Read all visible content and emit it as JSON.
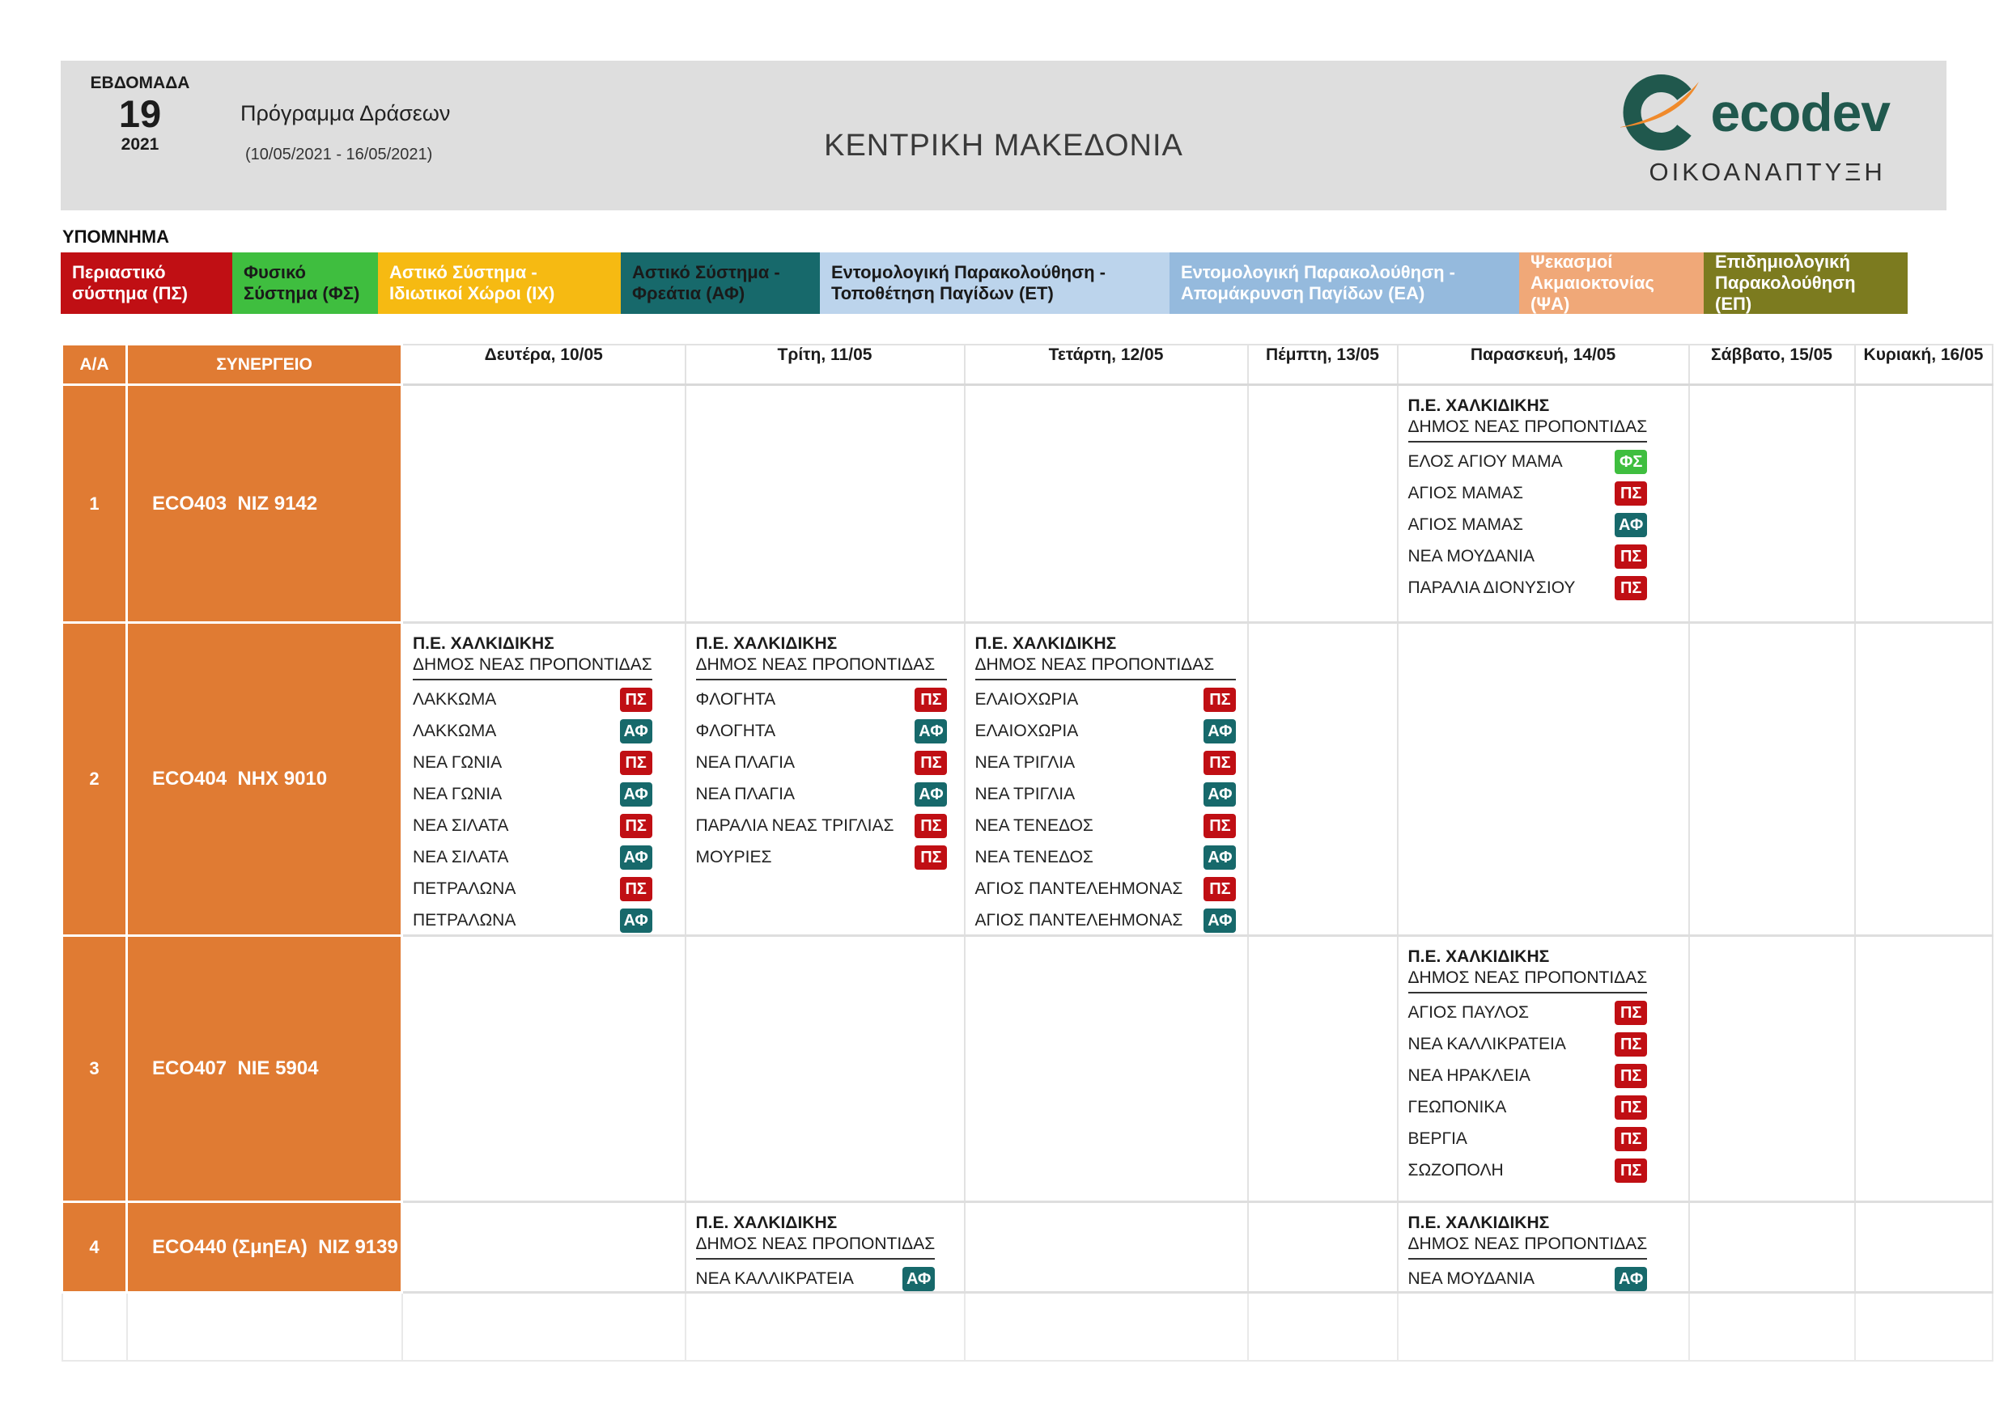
{
  "header": {
    "week_label": "ΕΒΔΟΜΑΔΑ",
    "week_number": "19",
    "year": "2021",
    "program_title": "Πρόγραμμα Δράσεων",
    "date_range": "(10/05/2021 - 16/05/2021)",
    "region_title": "ΚΕΝΤΡΙΚΗ ΜΑΚΕΔΟΝΙΑ",
    "logo_word": "ecodev",
    "logo_subtext": "ΟΙΚΟΑΝΑΠΤΥΞΗ",
    "logo_green": "#20584d",
    "logo_orange": "#f08a2b"
  },
  "legend": {
    "title": "ΥΠΟΜΝΗΜΑ",
    "items": [
      {
        "label": "Περιαστικό σύστημα (ΠΣ)",
        "code": "ΠΣ",
        "bg": "#c00f14",
        "fg": "#ffffff"
      },
      {
        "label": "Φυσικό Σύστημα (ΦΣ)",
        "code": "ΦΣ",
        "bg": "#3fbe3f",
        "fg": "#1a1a1a"
      },
      {
        "label": "Αστικό Σύστημα - Ιδιωτικοί Χώροι (ΙΧ)",
        "code": "ΙΧ",
        "bg": "#f6ba12",
        "fg": "#ffffff"
      },
      {
        "label": "Αστικό Σύστημα - Φρεάτια (ΑΦ)",
        "code": "ΑΦ",
        "bg": "#17696b",
        "fg": "#1a1a1a"
      },
      {
        "label": "Εντομολογική Παρακολούθηση - Τοποθέτηση Παγίδων (ΕΤ)",
        "code": "ΕΤ",
        "bg": "#bcd4ec",
        "fg": "#1a1a1a"
      },
      {
        "label": "Εντομολογική Παρακολούθηση - Απομάκρυνση Παγίδων (ΕΑ)",
        "code": "ΕΑ",
        "bg": "#95badd",
        "fg": "#ffffff"
      },
      {
        "label": "Ψεκασμοί Ακμαιοκτονίας (ΨΑ)",
        "code": "ΨΑ",
        "bg": "#f0a878",
        "fg": "#ffffff"
      },
      {
        "label": "Επιδημιολογική Παρακολούθηση (ΕΠ)",
        "code": "ΕΠ",
        "bg": "#7c7b1f",
        "fg": "#ffffff"
      }
    ]
  },
  "badge_colors": {
    "ΠΣ": "#c00f14",
    "ΦΣ": "#3fbe3f",
    "ΑΦ": "#17696b",
    "ΙΧ": "#f6ba12",
    "ΕΤ": "#bcd4ec",
    "ΕΑ": "#95badd",
    "ΨΑ": "#f0a878",
    "ΕΠ": "#7c7b1f"
  },
  "table": {
    "columns": [
      {
        "key": "aa",
        "label": "Α/Α"
      },
      {
        "key": "crew",
        "label": "ΣΥΝΕΡΓΕΙΟ"
      },
      {
        "key": "mon",
        "label": "Δευτέρα, 10/05"
      },
      {
        "key": "tue",
        "label": "Τρίτη, 11/05"
      },
      {
        "key": "wed",
        "label": "Τετάρτη, 12/05"
      },
      {
        "key": "thu",
        "label": "Πέμπτη, 13/05"
      },
      {
        "key": "fri",
        "label": "Παρασκευή, 14/05"
      },
      {
        "key": "sat",
        "label": "Σάββατο, 15/05"
      },
      {
        "key": "sun",
        "label": "Κυριακή, 16/05"
      }
    ],
    "rows": [
      {
        "aa": "1",
        "crew": "ECO403  ΝΙΖ 9142",
        "days": {
          "fri": {
            "area": "Π.Ε. ΧΑΛΚΙΔΙΚΗΣ",
            "municipality": "ΔΗΜΟΣ ΝΕΑΣ ΠΡΟΠΟΝΤΙΔΑΣ",
            "entries": [
              {
                "place": "ΕΛΟΣ ΑΓΙΟΥ ΜΑΜΑ",
                "code": "ΦΣ"
              },
              {
                "place": "ΑΓΙΟΣ ΜΑΜΑΣ",
                "code": "ΠΣ"
              },
              {
                "place": "ΑΓΙΟΣ ΜΑΜΑΣ",
                "code": "ΑΦ"
              },
              {
                "place": "ΝΕΑ ΜΟΥΔΑΝΙΑ",
                "code": "ΠΣ"
              },
              {
                "place": "ΠΑΡΑΛΙΑ ΔΙΟΝΥΣΙΟΥ",
                "code": "ΠΣ"
              }
            ]
          }
        }
      },
      {
        "aa": "2",
        "crew": "ECO404  ΝΗΧ 9010",
        "days": {
          "mon": {
            "area": "Π.Ε. ΧΑΛΚΙΔΙΚΗΣ",
            "municipality": "ΔΗΜΟΣ ΝΕΑΣ ΠΡΟΠΟΝΤΙΔΑΣ",
            "entries": [
              {
                "place": "ΛΑΚΚΩΜΑ",
                "code": "ΠΣ"
              },
              {
                "place": "ΛΑΚΚΩΜΑ",
                "code": "ΑΦ"
              },
              {
                "place": "ΝΕΑ ΓΩΝΙΑ",
                "code": "ΠΣ"
              },
              {
                "place": "ΝΕΑ ΓΩΝΙΑ",
                "code": "ΑΦ"
              },
              {
                "place": "ΝΕΑ ΣΙΛΑΤΑ",
                "code": "ΠΣ"
              },
              {
                "place": "ΝΕΑ ΣΙΛΑΤΑ",
                "code": "ΑΦ"
              },
              {
                "place": "ΠΕΤΡΑΛΩΝΑ",
                "code": "ΠΣ"
              },
              {
                "place": "ΠΕΤΡΑΛΩΝΑ",
                "code": "ΑΦ"
              }
            ]
          },
          "tue": {
            "area": "Π.Ε. ΧΑΛΚΙΔΙΚΗΣ",
            "municipality": "ΔΗΜΟΣ ΝΕΑΣ ΠΡΟΠΟΝΤΙΔΑΣ",
            "entries": [
              {
                "place": "ΦΛΟΓΗΤΑ",
                "code": "ΠΣ"
              },
              {
                "place": "ΦΛΟΓΗΤΑ",
                "code": "ΑΦ"
              },
              {
                "place": "ΝΕΑ ΠΛΑΓΙΑ",
                "code": "ΠΣ"
              },
              {
                "place": "ΝΕΑ ΠΛΑΓΙΑ",
                "code": "ΑΦ"
              },
              {
                "place": "ΠΑΡΑΛΙΑ ΝΕΑΣ ΤΡΙΓΛΙΑΣ",
                "code": "ΠΣ"
              },
              {
                "place": "ΜΟΥΡΙΕΣ",
                "code": "ΠΣ"
              }
            ]
          },
          "wed": {
            "area": "Π.Ε. ΧΑΛΚΙΔΙΚΗΣ",
            "municipality": "ΔΗΜΟΣ ΝΕΑΣ ΠΡΟΠΟΝΤΙΔΑΣ",
            "entries": [
              {
                "place": "ΕΛΑΙΟΧΩΡΙΑ",
                "code": "ΠΣ"
              },
              {
                "place": "ΕΛΑΙΟΧΩΡΙΑ",
                "code": "ΑΦ"
              },
              {
                "place": "ΝΕΑ ΤΡΙΓΛΙΑ",
                "code": "ΠΣ"
              },
              {
                "place": "ΝΕΑ ΤΡΙΓΛΙΑ",
                "code": "ΑΦ"
              },
              {
                "place": "ΝΕΑ ΤΕΝΕΔΟΣ",
                "code": "ΠΣ"
              },
              {
                "place": "ΝΕΑ ΤΕΝΕΔΟΣ",
                "code": "ΑΦ"
              },
              {
                "place": "ΑΓΙΟΣ ΠΑΝΤΕΛΕΗΜΟΝΑΣ",
                "code": "ΠΣ"
              },
              {
                "place": "ΑΓΙΟΣ ΠΑΝΤΕΛΕΗΜΟΝΑΣ",
                "code": "ΑΦ"
              }
            ]
          }
        }
      },
      {
        "aa": "3",
        "crew": "ECO407  ΝΙΕ 5904",
        "days": {
          "fri": {
            "area": "Π.Ε. ΧΑΛΚΙΔΙΚΗΣ",
            "municipality": "ΔΗΜΟΣ ΝΕΑΣ ΠΡΟΠΟΝΤΙΔΑΣ",
            "entries": [
              {
                "place": "ΑΓΙΟΣ ΠΑΥΛΟΣ",
                "code": "ΠΣ"
              },
              {
                "place": "ΝΕΑ ΚΑΛΛΙΚΡΑΤΕΙΑ",
                "code": "ΠΣ"
              },
              {
                "place": "ΝΕΑ ΗΡΑΚΛΕΙΑ",
                "code": "ΠΣ"
              },
              {
                "place": "ΓΕΩΠΟΝΙΚΑ",
                "code": "ΠΣ"
              },
              {
                "place": "ΒΕΡΓΙΑ",
                "code": "ΠΣ"
              },
              {
                "place": "ΣΩΖΟΠΟΛΗ",
                "code": "ΠΣ"
              }
            ]
          }
        }
      },
      {
        "aa": "4",
        "crew": "ECO440 (ΣμηΕΑ)  ΝΙΖ 9139",
        "days": {
          "tue": {
            "area": "Π.Ε. ΧΑΛΚΙΔΙΚΗΣ",
            "municipality": "ΔΗΜΟΣ ΝΕΑΣ ΠΡΟΠΟΝΤΙΔΑΣ",
            "entries": [
              {
                "place": "ΝΕΑ ΚΑΛΛΙΚΡΑΤΕΙΑ",
                "code": "ΑΦ"
              }
            ]
          },
          "fri": {
            "area": "Π.Ε. ΧΑΛΚΙΔΙΚΗΣ",
            "municipality": "ΔΗΜΟΣ ΝΕΑΣ ΠΡΟΠΟΝΤΙΔΑΣ",
            "entries": [
              {
                "place": "ΝΕΑ ΜΟΥΔΑΝΙΑ",
                "code": "ΑΦ"
              }
            ]
          }
        }
      }
    ]
  }
}
